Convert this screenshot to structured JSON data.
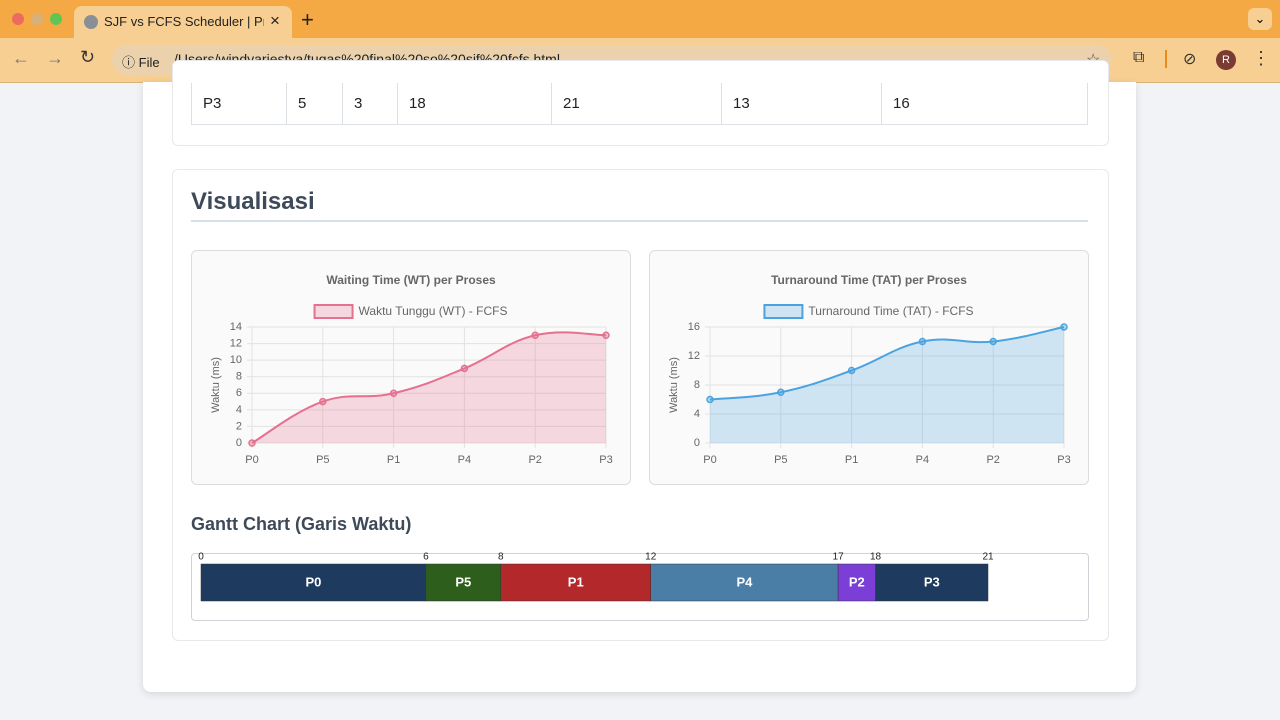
{
  "browser": {
    "tab_title": "SJF vs FCFS Scheduler | Proy",
    "url_scheme": "File",
    "url": "/Users/windyariestya/tugas%20final%20so%20sjf%20fcfs.html",
    "avatar": "R"
  },
  "table": {
    "rows": [
      [
        "P3",
        "5",
        "3",
        "18",
        "21",
        "13",
        "16"
      ]
    ]
  },
  "section_title": "Visualisasi",
  "charts": [
    {
      "type": "line",
      "title": "Waiting Time (WT) per Proses",
      "y_label": "Waktu (ms)",
      "categories": [
        "P0",
        "P5",
        "P1",
        "P4",
        "P2",
        "P3"
      ],
      "series": [
        {
          "name": "Waktu Tunggu (WT) - FCFS",
          "color": "#e5708f",
          "values": [
            0,
            5,
            6,
            9,
            13,
            13
          ]
        }
      ],
      "ylim": [
        0,
        14
      ],
      "yticks": [
        0,
        2,
        4,
        6,
        8,
        10,
        12,
        14
      ],
      "grid": true
    },
    {
      "type": "line",
      "title": "Turnaround Time (TAT) per Proses",
      "y_label": "Waktu (ms)",
      "categories": [
        "P0",
        "P5",
        "P1",
        "P4",
        "P2",
        "P3"
      ],
      "series": [
        {
          "name": "Turnaround Time (TAT) - FCFS",
          "color": "#4aa3df",
          "values": [
            6,
            7,
            10,
            14,
            14,
            16
          ]
        }
      ],
      "ylim": [
        0,
        16
      ],
      "yticks": [
        0,
        4,
        8,
        12,
        16
      ],
      "grid": true
    }
  ],
  "gantt": {
    "title": "Gantt Chart (Garis Waktu)",
    "processes": [
      "P0",
      "P5",
      "P1",
      "P4",
      "P2",
      "P3"
    ],
    "times": [
      0,
      6,
      8,
      12,
      17,
      18,
      21
    ],
    "colors": [
      "#1e3a5f",
      "#2d5e1c",
      "#b3292b",
      "#4a7ea6",
      "#7b3fd8",
      "#1e3a5f"
    ]
  }
}
